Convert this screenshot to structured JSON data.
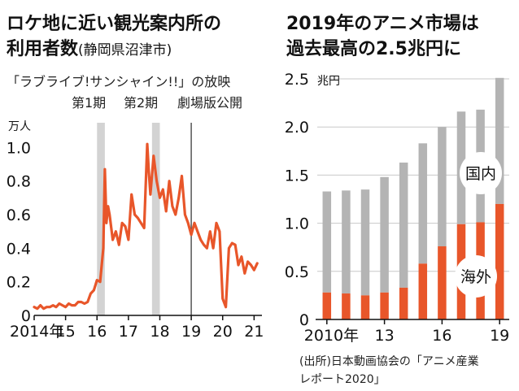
{
  "left": {
    "title_line1": "ロケ地に近い観光案内所の",
    "title_line2_main": "利用者数",
    "title_line2_sub": "(静岡県沼津市)",
    "subtitle": "「ラブライブ!サンシャイン!!」の放映",
    "event_labels": [
      "第1期",
      "第2期",
      "劇場版公開"
    ],
    "unit": "万人"
  },
  "right": {
    "title_line1": "2019年のアニメ市場は",
    "title_line2": "過去最高の2.5兆円に",
    "unit": "兆円",
    "label_domestic": "国内",
    "label_overseas": "海外",
    "source_line1": "(出所)日本動画協会の「アニメ産業",
    "source_line2": "レポート2020」"
  },
  "colors": {
    "line": "#e8562a",
    "overseas": "#e8562a",
    "domestic": "#b4b4b4",
    "band": "#d3d3d3",
    "marker": "#555555"
  },
  "chart_data": [
    {
      "type": "line",
      "title": "ロケ地に近い観光案内所の利用者数(静岡県沼津市)",
      "ylabel": "万人",
      "ylim": [
        0,
        1.05
      ],
      "xlim": [
        2014,
        2021.25
      ],
      "yticks": [
        0,
        0.2,
        0.4,
        0.6,
        0.8,
        1.0
      ],
      "ytick_labels": [
        "0",
        "0.2",
        "0.4",
        "0.6",
        "0.8",
        "1.0"
      ],
      "xticks": [
        2014,
        2015,
        2016,
        2017,
        2018,
        2019,
        2020,
        2021
      ],
      "xtick_labels": [
        "2014年",
        "15",
        "16",
        "17",
        "18",
        "19",
        "20",
        "21"
      ],
      "shaded_periods": [
        {
          "label": "第1期",
          "start": 2016.0,
          "end": 2016.25
        },
        {
          "label": "第2期",
          "start": 2017.75,
          "end": 2018.0
        }
      ],
      "event_lines": [
        {
          "label": "劇場版公開",
          "x": 2019.0
        }
      ],
      "series": [
        {
          "x": [
            2014.0,
            2014.1,
            2014.2,
            2014.3,
            2014.4,
            2014.5,
            2014.6,
            2014.7,
            2014.8,
            2014.9,
            2015.0,
            2015.1,
            2015.2,
            2015.3,
            2015.4,
            2015.5,
            2015.6,
            2015.7,
            2015.8,
            2015.9,
            2016.0,
            2016.1,
            2016.2,
            2016.25,
            2016.3,
            2016.35,
            2016.4,
            2016.5,
            2016.6,
            2016.7,
            2016.8,
            2016.9,
            2017.0,
            2017.1,
            2017.2,
            2017.3,
            2017.4,
            2017.5,
            2017.6,
            2017.65,
            2017.7,
            2017.8,
            2017.9,
            2018.0,
            2018.1,
            2018.2,
            2018.3,
            2018.4,
            2018.5,
            2018.6,
            2018.7,
            2018.8,
            2018.9,
            2019.0,
            2019.1,
            2019.2,
            2019.3,
            2019.4,
            2019.5,
            2019.6,
            2019.7,
            2019.8,
            2019.9,
            2020.0,
            2020.1,
            2020.2,
            2020.3,
            2020.4,
            2020.5,
            2020.6,
            2020.7,
            2020.8,
            2020.9,
            2021.0,
            2021.1
          ],
          "y": [
            0.05,
            0.04,
            0.06,
            0.04,
            0.05,
            0.05,
            0.06,
            0.05,
            0.07,
            0.06,
            0.05,
            0.07,
            0.06,
            0.06,
            0.08,
            0.08,
            0.07,
            0.08,
            0.13,
            0.15,
            0.21,
            0.2,
            0.4,
            0.87,
            0.55,
            0.65,
            0.6,
            0.45,
            0.5,
            0.42,
            0.55,
            0.53,
            0.45,
            0.72,
            0.6,
            0.58,
            0.55,
            0.52,
            1.02,
            0.85,
            0.72,
            0.95,
            0.8,
            0.7,
            0.75,
            0.62,
            0.8,
            0.65,
            0.6,
            0.7,
            0.83,
            0.6,
            0.55,
            0.48,
            0.55,
            0.5,
            0.45,
            0.42,
            0.4,
            0.5,
            0.4,
            0.55,
            0.5,
            0.1,
            0.05,
            0.4,
            0.43,
            0.42,
            0.3,
            0.35,
            0.25,
            0.32,
            0.3,
            0.27,
            0.31
          ]
        }
      ]
    },
    {
      "type": "bar",
      "stacked": true,
      "title": "2019年のアニメ市場は過去最高の2.5兆円に",
      "ylabel": "兆円",
      "ylim": [
        0,
        2.5
      ],
      "yticks": [
        0,
        0.5,
        1.0,
        1.5,
        2.0,
        2.5
      ],
      "ytick_labels": [
        "0",
        "0.5",
        "1.0",
        "1.5",
        "2.0",
        "2.5"
      ],
      "categories": [
        "2010",
        "2011",
        "2012",
        "2013",
        "2014",
        "2015",
        "2016",
        "2017",
        "2018",
        "2019"
      ],
      "xtick_labels": [
        "2010年",
        "",
        "",
        "13",
        "",
        "",
        "16",
        "",
        "",
        "19"
      ],
      "series": [
        {
          "name": "海外",
          "values": [
            0.28,
            0.27,
            0.25,
            0.28,
            0.33,
            0.58,
            0.76,
            0.99,
            1.01,
            1.2
          ]
        },
        {
          "name": "国内",
          "values": [
            1.05,
            1.07,
            1.1,
            1.2,
            1.3,
            1.25,
            1.24,
            1.17,
            1.17,
            1.31
          ]
        }
      ]
    }
  ]
}
